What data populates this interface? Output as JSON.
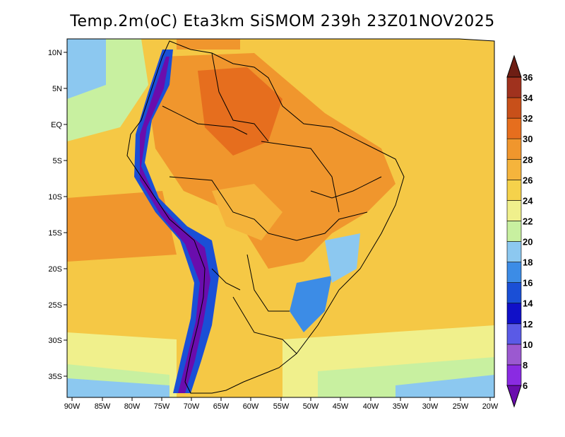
{
  "map": {
    "title": "Temp.2m(oC) Eta3km SiSMOM 239h 23Z01NOV2025",
    "variable": "Temp.2m",
    "units": "oC",
    "model": "Eta3km",
    "forecast_hour": "239h",
    "valid_time": "23Z01NOV2025",
    "region": "South America",
    "lon_labels": [
      "90W",
      "85W",
      "80W",
      "75W",
      "70W",
      "65W",
      "60W",
      "55W",
      "50W",
      "45W",
      "40W",
      "35W",
      "30W",
      "25W",
      "20W"
    ],
    "lat_labels": [
      "10N",
      "5N",
      "EQ",
      "5S",
      "10S",
      "15S",
      "20S",
      "25S",
      "30S",
      "35S"
    ]
  },
  "colorbar": {
    "labels": [
      "6",
      "8",
      "10",
      "12",
      "14",
      "16",
      "18",
      "20",
      "22",
      "24",
      "26",
      "28",
      "30",
      "32",
      "34",
      "36"
    ],
    "colors": [
      "#6a0dad",
      "#8a2be2",
      "#9b59d0",
      "#5a5ae6",
      "#1010c8",
      "#1a4fd6",
      "#3c8ce6",
      "#8cc8f0",
      "#c8f0a0",
      "#f0f08c",
      "#f5d24b",
      "#f5b43c",
      "#f0962d",
      "#e66e1e",
      "#c8501a",
      "#a0321e",
      "#6e1e14"
    ]
  }
}
